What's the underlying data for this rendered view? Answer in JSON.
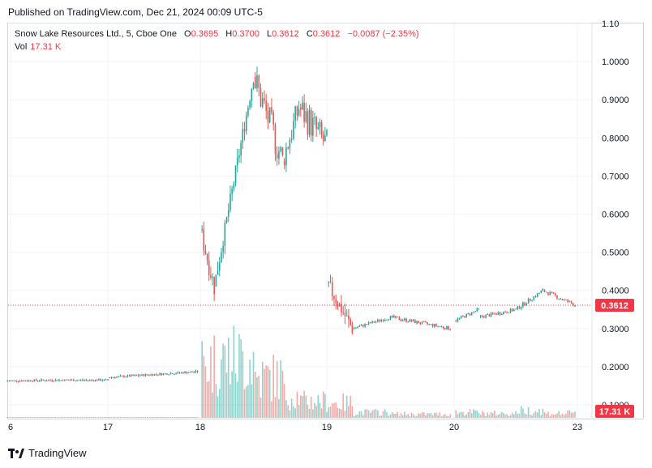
{
  "header": {
    "published": "Published on TradingView.com, Dec 21, 2024 00:09 UTC-5"
  },
  "legend": {
    "symbol": "Snow Lake Resources Ltd., 5, Cboe One",
    "o_label": "O",
    "o_value": "0.3695",
    "h_label": "H",
    "h_value": "0.3700",
    "l_label": "L",
    "l_value": "0.3612",
    "c_label": "C",
    "c_value": "0.3612",
    "change": "−0.0087 (−2.35%)",
    "vol_label": "Vol",
    "vol_value": "17.31 K"
  },
  "footer": {
    "brand": "TradingView"
  },
  "colors": {
    "up": "#26a69a",
    "down": "#ef5350",
    "last_price": "#f23645",
    "grid": "#f0f3fa",
    "text": "#131722"
  },
  "chart_data": {
    "type": "candlestick",
    "title": "",
    "xlabel": "",
    "ylabel": "",
    "x_ticks": [
      {
        "label": "6",
        "t": 0.0
      },
      {
        "label": "17",
        "t": 1.0
      },
      {
        "label": "18",
        "t": 2.0
      },
      {
        "label": "19",
        "t": 3.0
      },
      {
        "label": "20",
        "t": 4.0
      },
      {
        "label": "23",
        "t": 5.0
      }
    ],
    "y_ticks": [
      "1.10",
      "1.0000",
      "0.9000",
      "0.8000",
      "0.7000",
      "0.6000",
      "0.5000",
      "0.4000",
      "0.3000",
      "0.2000",
      "0.1000"
    ],
    "ylim": [
      0.07,
      1.1
    ],
    "last_price": 0.3612,
    "last_price_label": "0.3612",
    "last_volume_label": "17.31 K",
    "grid": true,
    "price_path_segments": [
      {
        "t_start": -0.05,
        "t_end": 0.5,
        "price_start": 0.163,
        "price_end": 0.165,
        "vol_max": 500
      },
      {
        "t_start": 0.5,
        "t_end": 1.0,
        "price_start": 0.165,
        "price_end": 0.165,
        "vol_max": 500
      },
      {
        "t_start": 1.0,
        "t_end": 1.97,
        "price_start": 0.172,
        "price_end": 0.187,
        "vol_max": 800
      },
      {
        "t_start": 2.0,
        "t_end": 2.11,
        "price_start": 0.56,
        "price_end": 0.41,
        "vol_max": 150000
      },
      {
        "t_start": 2.11,
        "t_end": 2.42,
        "price_start": 0.41,
        "price_end": 0.96,
        "vol_max": 160000
      },
      {
        "t_start": 2.42,
        "t_end": 2.65,
        "price_start": 0.96,
        "price_end": 0.74,
        "vol_max": 110000
      },
      {
        "t_start": 2.65,
        "t_end": 2.78,
        "price_start": 0.74,
        "price_end": 0.88,
        "vol_max": 60000
      },
      {
        "t_start": 2.78,
        "t_end": 3.0,
        "price_start": 0.88,
        "price_end": 0.78,
        "vol_max": 45000
      },
      {
        "t_start": 3.0,
        "t_end": 3.2,
        "price_start": 0.42,
        "price_end": 0.3,
        "vol_max": 40000
      },
      {
        "t_start": 3.2,
        "t_end": 3.5,
        "price_start": 0.3,
        "price_end": 0.33,
        "vol_max": 15000
      },
      {
        "t_start": 3.5,
        "t_end": 3.97,
        "price_start": 0.33,
        "price_end": 0.3,
        "vol_max": 10000
      },
      {
        "t_start": 4.0,
        "t_end": 4.2,
        "price_start": 0.32,
        "price_end": 0.35,
        "vol_max": 15000
      },
      {
        "t_start": 4.2,
        "t_end": 4.5,
        "price_start": 0.33,
        "price_end": 0.35,
        "vol_max": 12000
      },
      {
        "t_start": 4.5,
        "t_end": 4.72,
        "price_start": 0.35,
        "price_end": 0.4,
        "vol_max": 20000
      },
      {
        "t_start": 4.72,
        "t_end": 4.98,
        "price_start": 0.4,
        "price_end": 0.362,
        "vol_max": 12000
      }
    ]
  }
}
